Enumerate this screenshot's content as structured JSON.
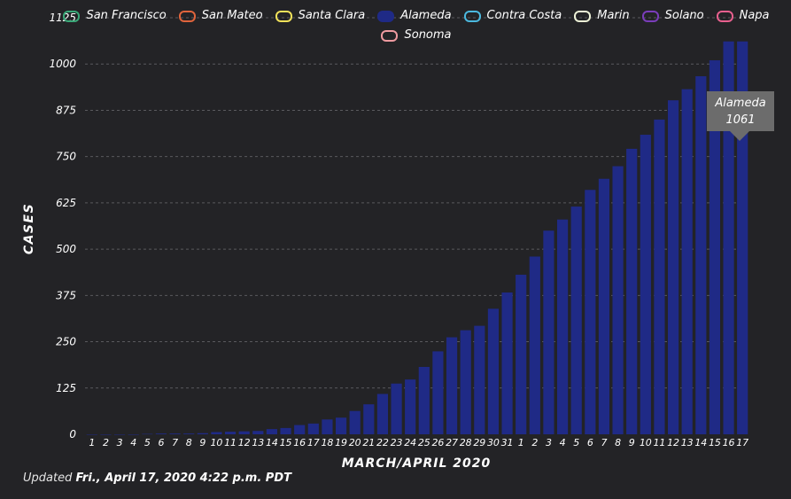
{
  "legend": [
    {
      "name": "San Francisco",
      "color": "#3aa878",
      "filled": false
    },
    {
      "name": "San Mateo",
      "color": "#e0643c",
      "filled": false
    },
    {
      "name": "Santa Clara",
      "color": "#f2e25a",
      "filled": false
    },
    {
      "name": "Alameda",
      "color": "#1f2a86",
      "filled": true
    },
    {
      "name": "Contra Costa",
      "color": "#4bb8de",
      "filled": false
    },
    {
      "name": "Marin",
      "color": "#ecf0d6",
      "filled": false
    },
    {
      "name": "Solano",
      "color": "#7a3dba",
      "filled": false
    },
    {
      "name": "Napa",
      "color": "#e8608e",
      "filled": false
    },
    {
      "name": "Sonoma",
      "color": "#ee9aa0",
      "filled": false
    }
  ],
  "chart_data": {
    "type": "bar",
    "xlabel": "MARCH/APRIL 2020",
    "ylabel": "CASES",
    "ylim": [
      0,
      1125
    ],
    "yticks": [
      0,
      125,
      250,
      375,
      500,
      625,
      750,
      875,
      1000,
      1125
    ],
    "grid": true,
    "legend_position": "top",
    "bar_color": "#1f2a86",
    "categories": [
      "1",
      "2",
      "3",
      "4",
      "5",
      "6",
      "7",
      "8",
      "9",
      "10",
      "11",
      "12",
      "13",
      "14",
      "15",
      "16",
      "17",
      "18",
      "19",
      "20",
      "21",
      "22",
      "23",
      "24",
      "25",
      "26",
      "27",
      "28",
      "29",
      "30",
      "31",
      "1",
      "2",
      "3",
      "4",
      "5",
      "6",
      "7",
      "8",
      "9",
      "10",
      "11",
      "12",
      "13",
      "14",
      "15",
      "16",
      "17"
    ],
    "series": [
      {
        "name": "Alameda",
        "values": [
          0,
          0,
          0,
          0,
          1,
          2,
          2,
          2,
          3,
          6,
          7,
          8,
          9,
          14,
          17,
          25,
          29,
          40,
          45,
          63,
          81,
          109,
          137,
          148,
          182,
          224,
          262,
          281,
          293,
          339,
          383,
          431,
          480,
          550,
          580,
          615,
          660,
          690,
          724,
          771,
          809,
          850,
          902,
          932,
          967,
          1010,
          1061,
          1061
        ]
      }
    ]
  },
  "tooltip": {
    "series": "Alameda",
    "value": "1061"
  },
  "footer": {
    "prefix": "Updated",
    "date": "Fri., April 17, 2020 4:22 p.m. PDT"
  }
}
